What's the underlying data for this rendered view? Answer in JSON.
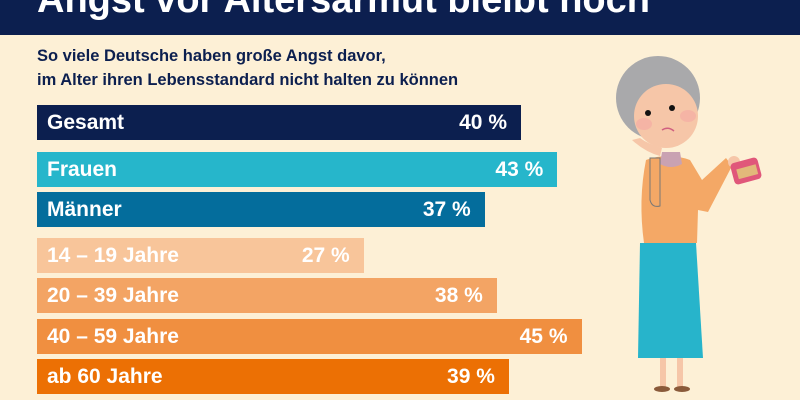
{
  "title": "Angst vor Altersarmut bleibt hoch",
  "subtitle_line1": "So viele Deutsche haben große Angst davor,",
  "subtitle_line2": "im Alter ihren Lebensstandard nicht halten zu können",
  "chart_data": {
    "type": "bar",
    "orientation": "horizontal",
    "title": "Angst vor Altersarmut bleibt hoch",
    "subtitle": "So viele Deutsche haben große Angst davor, im Alter ihren Lebensstandard nicht halten zu können",
    "unit": "%",
    "categories": [
      "Gesamt",
      "Frauen",
      "Männer",
      "14 – 19 Jahre",
      "20 – 39 Jahre",
      "40 – 59 Jahre",
      "ab 60 Jahre"
    ],
    "values": [
      40,
      43,
      37,
      27,
      38,
      45,
      39
    ],
    "value_labels": [
      "40 %",
      "43 %",
      "37 %",
      "27 %",
      "38 %",
      "45 %",
      "39 %"
    ],
    "colors": [
      "#0c1f4f",
      "#26b6cb",
      "#046d9c",
      "#f8c59a",
      "#f3a464",
      "#f08f40",
      "#ec7004"
    ],
    "grid": false
  },
  "colors": {
    "header": "#0c1f4f",
    "background": "#fdf0d6"
  },
  "illustration": "elderly-woman-holding-purse"
}
